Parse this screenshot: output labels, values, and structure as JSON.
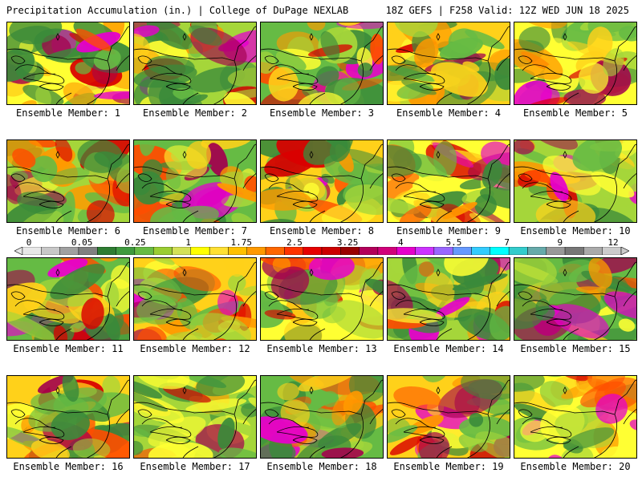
{
  "header": {
    "left": "Precipitation Accumulation (in.) | College of DuPage NEXLAB",
    "right": "18Z GEFS | F258 Valid: 12Z WED JUN 18 2025"
  },
  "panels": [
    {
      "label": "Ensemble Member: 1"
    },
    {
      "label": "Ensemble Member: 2"
    },
    {
      "label": "Ensemble Member: 3"
    },
    {
      "label": "Ensemble Member: 4"
    },
    {
      "label": "Ensemble Member: 5"
    },
    {
      "label": "Ensemble Member: 6"
    },
    {
      "label": "Ensemble Member: 7"
    },
    {
      "label": "Ensemble Member: 8"
    },
    {
      "label": "Ensemble Member: 9"
    },
    {
      "label": "Ensemble Member: 10"
    },
    {
      "label": "Ensemble Member: 11"
    },
    {
      "label": "Ensemble Member: 12"
    },
    {
      "label": "Ensemble Member: 13"
    },
    {
      "label": "Ensemble Member: 14"
    },
    {
      "label": "Ensemble Member: 15"
    },
    {
      "label": "Ensemble Member: 16"
    },
    {
      "label": "Ensemble Member: 17"
    },
    {
      "label": "Ensemble Member: 18"
    },
    {
      "label": "Ensemble Member: 19"
    },
    {
      "label": "Ensemble Member: 20"
    }
  ],
  "colorbar": {
    "ticks": [
      "0",
      "0.05",
      "0.25",
      "1",
      "1.75",
      "2.5",
      "3.25",
      "4",
      "5.5",
      "7",
      "9",
      "12"
    ],
    "colors": [
      "#e8e8e8",
      "#c8c8c8",
      "#a0a0a0",
      "#808080",
      "#2e7d32",
      "#3f9a3f",
      "#66bb44",
      "#9acd32",
      "#d4e157",
      "#ffff00",
      "#ffe033",
      "#ffc000",
      "#ff9900",
      "#ff6600",
      "#ff3300",
      "#e60000",
      "#cc0000",
      "#990000",
      "#b3005a",
      "#d1007a",
      "#e600cc",
      "#cc33ff",
      "#9966ff",
      "#6699ff",
      "#33ccff",
      "#00ffff",
      "#33cccc",
      "#66aaaa",
      "#999999",
      "#777777",
      "#aaaaaa",
      "#cccccc"
    ]
  }
}
